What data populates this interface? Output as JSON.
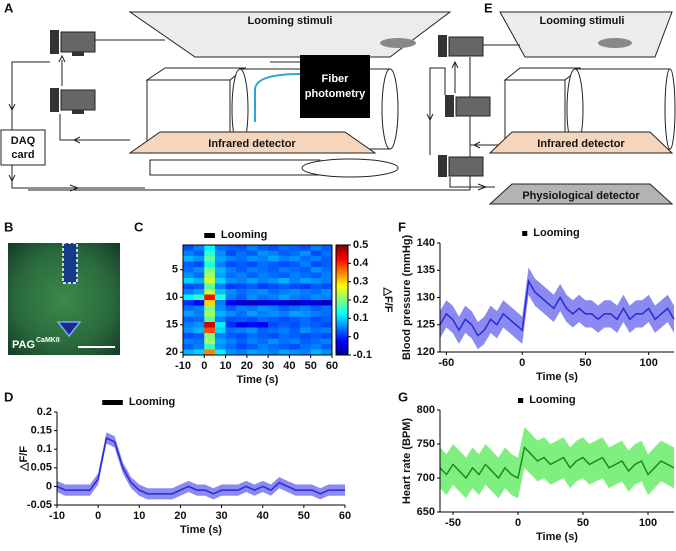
{
  "panels": [
    "A",
    "B",
    "C",
    "D",
    "E",
    "F",
    "G"
  ],
  "schematic_A": {
    "screen": "Looming stimuli",
    "photometry": [
      "Fiber",
      "photometry"
    ],
    "detector": "Infrared detector",
    "daq": [
      "DAQ",
      "card"
    ]
  },
  "schematic_E": {
    "screen": "Looming stimuli",
    "detector": "Infrared detector",
    "physio": "Physiological detector"
  },
  "image_B": {
    "label": "PAG",
    "superscript": "CaMKII"
  },
  "chart_data": [
    {
      "type": "heatmap",
      "xbins": [
        -10,
        -5,
        0,
        5,
        10,
        15,
        20,
        25,
        30,
        35,
        40,
        45,
        50,
        55,
        60
      ],
      "values": [
        [
          0.02,
          0.05,
          0.12,
          0.04,
          0.03,
          0.02,
          0.05,
          0.03,
          0.02,
          0.04,
          0.03,
          0.02,
          0.05,
          0.03
        ],
        [
          0.05,
          0.03,
          0.15,
          0.06,
          0.02,
          0.04,
          0.03,
          0.06,
          0.05,
          0.03,
          0.04,
          0.06,
          0.02,
          0.04
        ],
        [
          0.08,
          0.06,
          0.18,
          0.07,
          0.05,
          0.04,
          0.06,
          0.05,
          0.07,
          0.05,
          0.06,
          0.04,
          0.05,
          0.03
        ],
        [
          0.03,
          0.02,
          0.14,
          0.05,
          0.02,
          0.03,
          0.02,
          0.04,
          0.03,
          0.02,
          0.03,
          0.05,
          0.02,
          0.03
        ],
        [
          0.04,
          0.06,
          0.2,
          0.08,
          0.05,
          0.03,
          0.05,
          0.04,
          0.03,
          0.05,
          0.04,
          0.03,
          0.06,
          0.04
        ],
        [
          0.06,
          0.04,
          0.22,
          0.07,
          0.04,
          0.05,
          0.03,
          0.05,
          0.04,
          0.03,
          0.05,
          0.04,
          0.03,
          0.05
        ],
        [
          0.1,
          0.08,
          0.25,
          0.1,
          0.06,
          0.05,
          0.07,
          0.05,
          0.06,
          0.08,
          0.05,
          0.07,
          0.06,
          0.05
        ],
        [
          0.02,
          0.03,
          0.18,
          0.05,
          0.01,
          0.02,
          0.03,
          0.01,
          0.02,
          0.03,
          0.02,
          0.01,
          0.03,
          0.02
        ],
        [
          0.05,
          0.07,
          0.24,
          0.09,
          0.06,
          0.04,
          0.05,
          0.06,
          0.04,
          0.05,
          0.06,
          0.05,
          0.04,
          0.06
        ],
        [
          0.12,
          0.15,
          0.42,
          0.15,
          0.05,
          0.03,
          0.06,
          0.04,
          0.05,
          0.07,
          0.05,
          0.04,
          0.06,
          0.05
        ],
        [
          0,
          -0.02,
          0.3,
          0.05,
          -0.03,
          -0.05,
          -0.06,
          -0.05,
          -0.04,
          -0.05,
          -0.06,
          -0.04,
          -0.05,
          -0.06
        ],
        [
          0.04,
          0.05,
          0.2,
          0.06,
          0.03,
          0.05,
          0.04,
          0.06,
          0.05,
          0.03,
          0.04,
          0.05,
          0.03,
          0.04
        ],
        [
          0.07,
          0.05,
          0.22,
          0.08,
          0.06,
          0.04,
          0.07,
          0.05,
          0.06,
          0.05,
          0.07,
          0.06,
          0.05,
          0.04
        ],
        [
          0.03,
          0.04,
          0.18,
          0.05,
          0.02,
          0.03,
          0.02,
          0.04,
          0.03,
          0.02,
          0.03,
          0.04,
          0.02,
          0.03
        ],
        [
          0.05,
          0.06,
          0.45,
          0.12,
          0,
          -0.04,
          -0.02,
          -0.03,
          0.02,
          0.03,
          0.02,
          0.04,
          0.03,
          0.02
        ],
        [
          0.06,
          0.08,
          0.38,
          0.1,
          0.04,
          0.05,
          0.06,
          0.03,
          0.04,
          0.05,
          0.03,
          0.06,
          0.04,
          0.05
        ],
        [
          0.02,
          0.03,
          0.2,
          0.05,
          0.03,
          0.02,
          0.04,
          0.03,
          0.02,
          0.04,
          0.03,
          0.02,
          0.03,
          0.02
        ],
        [
          0.05,
          0.04,
          0.22,
          0.07,
          0.05,
          0.03,
          0.05,
          0.04,
          0.06,
          0.04,
          0.05,
          0.03,
          0.04,
          0.05
        ],
        [
          0.03,
          0.05,
          0.16,
          0.06,
          0.04,
          0.02,
          0.03,
          0.05,
          0.04,
          0.03,
          0.02,
          0.04,
          0.05,
          0.03
        ],
        [
          0.08,
          0.1,
          0.35,
          0.12,
          0.06,
          0.05,
          0.07,
          0.06,
          0.05,
          0.07,
          0.06,
          0.05,
          0.08,
          0.06
        ]
      ],
      "xlim": [
        -10,
        60
      ],
      "xticks": [
        -10,
        0,
        10,
        20,
        30,
        40,
        50,
        60
      ],
      "ylim": [
        0.5,
        20.5
      ],
      "yticks": [
        5,
        10,
        15,
        20
      ],
      "clim": [
        -0.1,
        0.5
      ],
      "cticks": [
        -0.1,
        0,
        0.1,
        0.2,
        0.3,
        0.4,
        0.5
      ],
      "colorbar_label": "△F/F",
      "xlabel": "Time (s)",
      "annotation": {
        "text": "Looming",
        "x": [
          0,
          5
        ]
      }
    },
    {
      "type": "line",
      "x": [
        -10,
        -8,
        -6,
        -4,
        -2,
        0,
        2,
        4,
        6,
        8,
        10,
        12,
        14,
        16,
        18,
        20,
        22,
        24,
        26,
        28,
        30,
        32,
        34,
        36,
        38,
        40,
        42,
        44,
        46,
        48,
        50,
        52,
        54,
        56,
        58,
        60
      ],
      "values": [
        0,
        -0.01,
        -0.01,
        -0.01,
        -0.01,
        0.02,
        0.13,
        0.12,
        0.05,
        0.01,
        -0.01,
        -0.02,
        -0.02,
        -0.02,
        -0.02,
        -0.01,
        0,
        -0.01,
        -0.01,
        -0.02,
        -0.01,
        -0.01,
        -0.01,
        0,
        -0.01,
        0,
        -0.01,
        0.01,
        0,
        -0.01,
        -0.01,
        -0.01,
        -0.02,
        -0.01,
        -0.01,
        -0.01
      ],
      "error": 0.015,
      "color": "#2a2ad8",
      "band_color": "#8a8af0",
      "xlim": [
        -10,
        60
      ],
      "xticks": [
        -10,
        0,
        10,
        20,
        30,
        40,
        50,
        60
      ],
      "ylim": [
        -0.05,
        0.2
      ],
      "yticks": [
        -0.05,
        0,
        0.05,
        0.1,
        0.15,
        0.2
      ],
      "xlabel": "Time (s)",
      "ylabel": "△F/F",
      "annotation": {
        "text": "Looming",
        "x": [
          1,
          6
        ]
      }
    },
    {
      "type": "line",
      "x": [
        -65,
        -60,
        -55,
        -50,
        -45,
        -40,
        -35,
        -30,
        -25,
        -20,
        -15,
        -10,
        -5,
        0,
        5,
        10,
        15,
        20,
        25,
        30,
        35,
        40,
        45,
        50,
        55,
        60,
        65,
        70,
        75,
        80,
        85,
        90,
        95,
        100,
        105,
        110,
        115,
        120
      ],
      "values": [
        125,
        127,
        126,
        124,
        126,
        125,
        123,
        124,
        126,
        125,
        127,
        126,
        125,
        124,
        133,
        131,
        130,
        129,
        128,
        130,
        128,
        127,
        128,
        127,
        127,
        126,
        127,
        127,
        126,
        128,
        126,
        127,
        127,
        128,
        126,
        127,
        128,
        126
      ],
      "error": 2.5,
      "color": "#2a2ad8",
      "band_color": "#8a8af0",
      "xlim": [
        -65,
        120
      ],
      "xticks": [
        -60,
        0,
        50,
        100
      ],
      "ylim": [
        120,
        140
      ],
      "yticks": [
        120,
        125,
        130,
        135,
        140
      ],
      "xlabel": "Time (s)",
      "ylabel": "Blood pressure (mmHg)",
      "annotation": {
        "text": "Looming",
        "x": [
          0,
          4
        ]
      }
    },
    {
      "type": "line",
      "x": [
        -60,
        -55,
        -50,
        -45,
        -40,
        -35,
        -30,
        -25,
        -20,
        -15,
        -10,
        -5,
        0,
        5,
        10,
        15,
        20,
        25,
        30,
        35,
        40,
        45,
        50,
        55,
        60,
        65,
        70,
        75,
        80,
        85,
        90,
        95,
        100,
        105,
        110,
        115,
        120
      ],
      "values": [
        715,
        705,
        720,
        710,
        700,
        715,
        705,
        720,
        710,
        700,
        715,
        705,
        700,
        745,
        735,
        725,
        730,
        720,
        725,
        730,
        715,
        725,
        730,
        720,
        725,
        730,
        715,
        720,
        725,
        710,
        720,
        725,
        705,
        715,
        725,
        720,
        715
      ],
      "error": 30,
      "color": "#1e8a1e",
      "band_color": "#7ff07f",
      "xlim": [
        -60,
        120
      ],
      "xticks": [
        -50,
        0,
        50,
        100
      ],
      "ylim": [
        650,
        800
      ],
      "yticks": [
        650,
        700,
        750,
        800
      ],
      "xlabel": "Time (s)",
      "ylabel": "Heart rate (BPM)",
      "annotation": {
        "text": "Looming",
        "x": [
          0,
          4
        ]
      }
    }
  ]
}
